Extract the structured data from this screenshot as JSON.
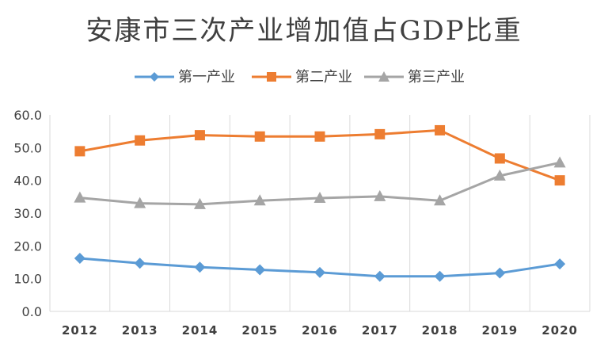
{
  "chart_data": {
    "type": "line",
    "title": "安康市三次产业增加值占GDP比重",
    "categories": [
      "2012",
      "2013",
      "2014",
      "2015",
      "2016",
      "2017",
      "2018",
      "2019",
      "2020"
    ],
    "ylim": [
      0,
      60
    ],
    "yticks": [
      "0.0",
      "10.0",
      "20.0",
      "30.0",
      "40.0",
      "50.0",
      "60.0"
    ],
    "grid": "vertical",
    "legend_position": "top-center",
    "xlabel": "",
    "ylabel": "",
    "series": [
      {
        "name": "第一产业",
        "color": "#5b9bd5",
        "marker": "diamond",
        "values": [
          16.2,
          14.7,
          13.5,
          12.7,
          11.9,
          10.7,
          10.7,
          11.7,
          14.5
        ]
      },
      {
        "name": "第二产业",
        "color": "#ed7d31",
        "marker": "square",
        "values": [
          48.9,
          52.2,
          53.8,
          53.4,
          53.4,
          54.1,
          55.3,
          46.7,
          40.0
        ]
      },
      {
        "name": "第三产业",
        "color": "#a5a5a5",
        "marker": "triangle",
        "values": [
          34.7,
          33.0,
          32.7,
          33.8,
          34.6,
          35.1,
          33.8,
          41.4,
          45.4
        ]
      }
    ]
  }
}
